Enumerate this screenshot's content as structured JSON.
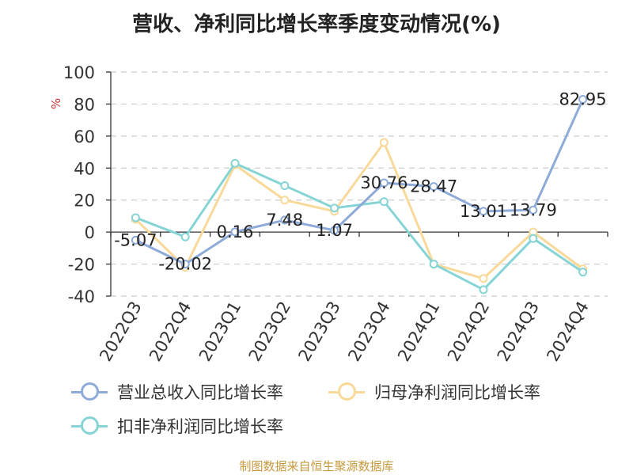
{
  "chart_data": {
    "type": "line",
    "title": "营收、净利同比增长率季度变动情况(%)",
    "ylabel": "%",
    "ylim": [
      -40,
      100
    ],
    "yticks": [
      100,
      80,
      60,
      40,
      20,
      0,
      -20,
      -40
    ],
    "grid": true,
    "legend_position": "bottom",
    "categories": [
      "2022Q3",
      "2022Q4",
      "2023Q1",
      "2023Q2",
      "2023Q3",
      "2023Q4",
      "2024Q1",
      "2024Q2",
      "2024Q3",
      "2024Q4"
    ],
    "series": [
      {
        "name": "营业总收入同比增长率",
        "color": "#8eaad8",
        "labeled": true,
        "values": [
          -5.07,
          -20.02,
          0.16,
          7.48,
          1.07,
          30.76,
          28.47,
          13.01,
          13.79,
          82.95
        ],
        "labels": [
          "-5.07",
          "-20.02",
          "0.16",
          "7.48",
          "1.07",
          "30.76",
          "28.47",
          "13.01",
          "13.79",
          "82.95"
        ]
      },
      {
        "name": "归母净利润同比增长率",
        "color": "#f9d99a",
        "labeled": false,
        "values": [
          8,
          -22,
          42,
          20,
          13,
          56,
          -20,
          -29,
          0,
          -23
        ]
      },
      {
        "name": "扣非净利润同比增长率",
        "color": "#86d4d5",
        "labeled": false,
        "values": [
          9,
          -3,
          43,
          29,
          15,
          19,
          -20,
          -36,
          -4,
          -25
        ]
      }
    ]
  },
  "source_note": "制图数据来自恒生聚源数据库"
}
